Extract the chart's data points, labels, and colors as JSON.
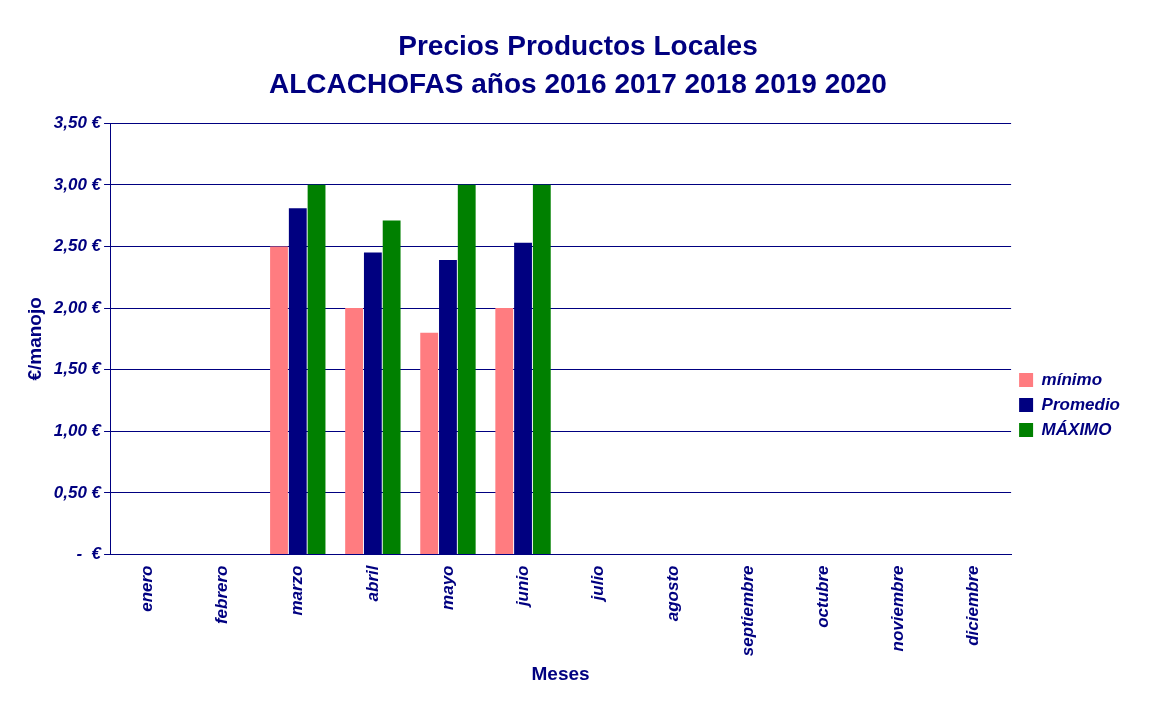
{
  "chart_data": {
    "type": "bar",
    "title": "Precios Productos Locales",
    "subtitle": "ALCACHOFAS años  2016 2017 2018 2019 2020",
    "xlabel": "Meses",
    "ylabel": "€/manojo",
    "categories": [
      "enero",
      "febrero",
      "marzo",
      "abril",
      "mayo",
      "junio",
      "julio",
      "agosto",
      "septiembre",
      "octubre",
      "noviembre",
      "diciembre"
    ],
    "series": [
      {
        "name": "mínimo",
        "color": "#ff7c80",
        "values": [
          null,
          null,
          2.5,
          2.0,
          1.8,
          2.0,
          null,
          null,
          null,
          null,
          null,
          null
        ]
      },
      {
        "name": "Promedio",
        "color": "#000080",
        "values": [
          null,
          null,
          2.81,
          2.45,
          2.39,
          2.53,
          null,
          null,
          null,
          null,
          null,
          null
        ]
      },
      {
        "name": "MÁXIMO",
        "color": "#008000",
        "values": [
          null,
          null,
          3.0,
          2.71,
          3.0,
          3.0,
          null,
          null,
          null,
          null,
          null,
          null
        ]
      }
    ],
    "ylim": [
      0,
      3.5
    ],
    "yticks": [
      {
        "value": 0,
        "label": "-  €"
      },
      {
        "value": 0.5,
        "label": "0,50 €"
      },
      {
        "value": 1,
        "label": "1,00 €"
      },
      {
        "value": 1.5,
        "label": "1,50 €"
      },
      {
        "value": 2,
        "label": "2,00 €"
      },
      {
        "value": 2.5,
        "label": "2,50 €"
      },
      {
        "value": 3,
        "label": "3,00 €"
      },
      {
        "value": 3.5,
        "label": "3,50 €"
      }
    ],
    "grid": "y",
    "legend": "right"
  }
}
